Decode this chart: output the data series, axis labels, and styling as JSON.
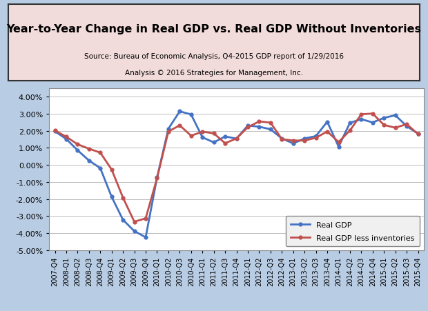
{
  "title": "Year-to-Year Change in Real GDP vs. Real GDP Without Inventories",
  "subtitle1": "Source: Bureau of Economic Analysis, Q4-2015 GDP report of 1/29/2016",
  "subtitle2": "Analysis © 2016 Strategies for Management, Inc.",
  "background_outer": "#b8cce4",
  "background_inner": "#ffffff",
  "title_box_color": "#f2dcdb",
  "ylim": [
    -0.05,
    0.045
  ],
  "yticks": [
    -0.05,
    -0.04,
    -0.03,
    -0.02,
    -0.01,
    0.0,
    0.01,
    0.02,
    0.03,
    0.04
  ],
  "labels": [
    "2007-Q4",
    "2008-Q1",
    "2008-Q2",
    "2008-Q3",
    "2008-Q4",
    "2009-Q1",
    "2009-Q2",
    "2009-Q3",
    "2009-Q4",
    "2010-Q1",
    "2010-Q2",
    "2010-Q3",
    "2010-Q4",
    "2011-Q1",
    "2011-Q2",
    "2011-Q3",
    "2011-Q4",
    "2012-Q1",
    "2012-Q2",
    "2012-Q3",
    "2012-Q4",
    "2013-Q1",
    "2013-Q2",
    "2013-Q3",
    "2013-Q4",
    "2014-Q1",
    "2014-Q2",
    "2014-Q3",
    "2014-Q4",
    "2015-Q1",
    "2015-Q2",
    "2015-Q3",
    "2015-Q4"
  ],
  "real_gdp": [
    0.0197,
    0.0152,
    0.0086,
    0.0026,
    -0.0019,
    -0.0187,
    -0.0322,
    -0.0388,
    -0.0424,
    -0.0074,
    0.0212,
    0.0314,
    0.0296,
    0.0162,
    0.0132,
    0.0167,
    0.0154,
    0.0231,
    0.0224,
    0.0209,
    0.0155,
    0.0126,
    0.0155,
    0.0169,
    0.0253,
    0.0107,
    0.0247,
    0.0268,
    0.0249,
    0.0276,
    0.0291,
    0.0227,
    0.0183
  ],
  "real_gdp_less_inv": [
    0.0202,
    0.0165,
    0.0121,
    0.0095,
    0.0072,
    -0.0027,
    -0.0192,
    -0.0333,
    -0.0313,
    -0.0078,
    0.0196,
    0.0232,
    0.0171,
    0.0195,
    0.0185,
    0.0127,
    0.0155,
    0.0221,
    0.0255,
    0.0248,
    0.0151,
    0.0143,
    0.0143,
    0.0159,
    0.0196,
    0.0134,
    0.0202,
    0.0297,
    0.0301,
    0.0234,
    0.0218,
    0.0239,
    0.0181
  ],
  "gdp_color": "#4472c4",
  "inv_color": "#c0504d",
  "legend_labels": [
    "Real GDP",
    "Real GDP less inventories"
  ]
}
